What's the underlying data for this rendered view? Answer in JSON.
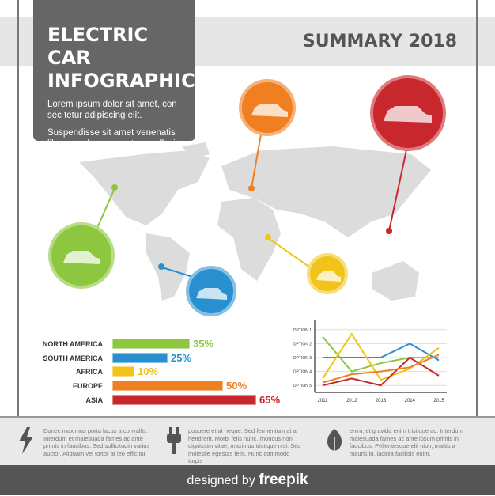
{
  "header": {
    "title_lines": [
      "ELECTRIC CAR",
      "INFOGRAPHICS"
    ],
    "paragraphs": [
      "Lorem ipsum dolor sit amet, con sec tetur adipiscing elit.",
      "Suspendisse sit amet venenatis libero, sed consequat eros. Proin semper tortor id justo efficitur."
    ],
    "summary": "SUMMARY 2018"
  },
  "chart_data": [
    {
      "type": "bar",
      "categories": [
        "NORTH AMERICA",
        "SOUTH AMERICA",
        "AFRICA",
        "EUROPE",
        "ASIA"
      ],
      "values": [
        35,
        25,
        10,
        50,
        65
      ],
      "value_labels": [
        "35%",
        "25%",
        "10%",
        "50%",
        "65%"
      ],
      "colors": [
        "#8dc63f",
        "#2a8fcf",
        "#f2c31a",
        "#f07f22",
        "#c8282d"
      ]
    },
    {
      "type": "line",
      "categories": [
        "2011",
        "2012",
        "2013",
        "2014",
        "2015"
      ],
      "ylim": [
        5.5,
        0.5
      ],
      "yticks": [
        {
          "value": 1,
          "label": "OPTION 1"
        },
        {
          "value": 2,
          "label": "OPTION 2"
        },
        {
          "value": 3,
          "label": "OPTION 3"
        },
        {
          "value": 4,
          "label": "OPTION 4"
        },
        {
          "value": 5,
          "label": "OPTION 5"
        }
      ],
      "grid": true,
      "series": [
        {
          "color": "#2a8fcf",
          "values": [
            3,
            3,
            3,
            2,
            3.2
          ]
        },
        {
          "color": "#8dc63f",
          "values": [
            1.5,
            4,
            3.4,
            3,
            3
          ]
        },
        {
          "color": "#f2c31a",
          "values": [
            4.5,
            1.3,
            4.6,
            3.8,
            2.3
          ]
        },
        {
          "color": "#c8282d",
          "values": [
            5,
            4.5,
            5,
            3,
            4.3
          ]
        },
        {
          "color": "#f07f22",
          "values": [
            4.8,
            4.2,
            4,
            3.7,
            2.8
          ]
        }
      ]
    }
  ],
  "footer": {
    "columns": [
      "Donec maximus porta lacus a convallis. Interdum et malesuada fames ac ante primis in faucibus. Sed sollicitudin varius auctor. Aliquam vel tortor at leo efficitur",
      "posuere et at neque. Sed fermentum at a hendrerit. Morbi felis nunc, rhoncus non dignissim vitae, maximus tristique nisi. Sed molestie egestas felis. Nunc commodo turpis",
      "enim, et gravida enim tristique ac. Interdum malesuada fames ac ante ipsum primis in faucibus. Pellentesque elit nibh, mattis a mauris in, lacinia facilisis enim."
    ],
    "credit": "designed by",
    "brand": "freepik"
  }
}
